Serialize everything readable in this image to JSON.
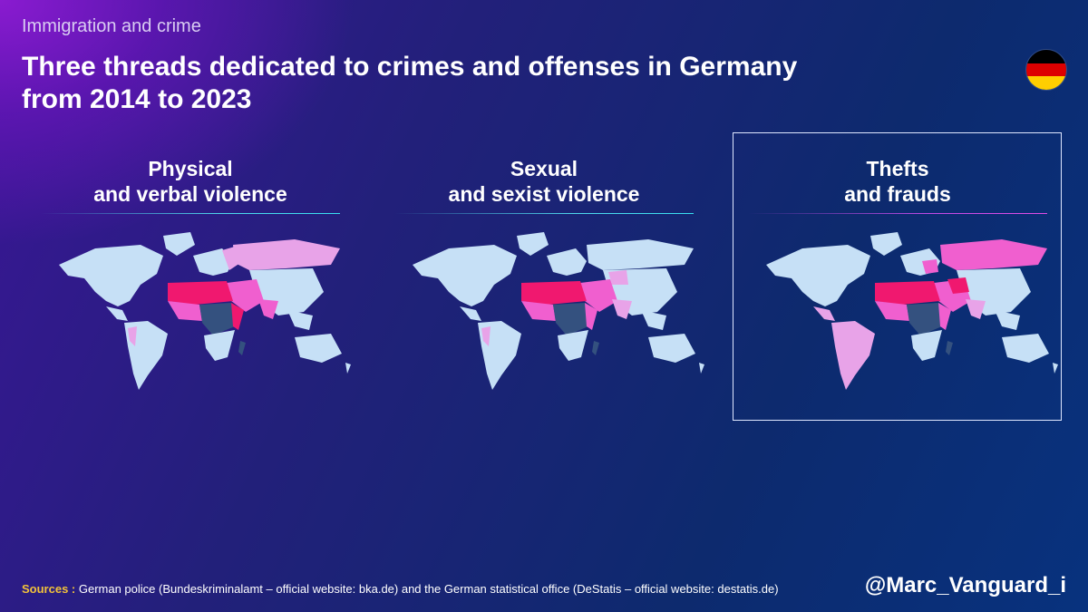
{
  "header": {
    "kicker": "Immigration and crime",
    "title_line1": "Three threads dedicated to crimes and offenses in Germany",
    "title_line2": "from 2014 to 2023"
  },
  "flag": {
    "name": "germany-flag-icon",
    "colors": [
      "#000000",
      "#dd0000",
      "#ffce00"
    ]
  },
  "panels": [
    {
      "line1": "Physical",
      "line2": "and verbal violence",
      "selected": false
    },
    {
      "line1": "Sexual",
      "line2": "and sexist violence",
      "selected": false
    },
    {
      "line1": "Thefts",
      "line2": "and frauds",
      "selected": true
    }
  ],
  "map_colors": {
    "base": "#c6e0f6",
    "dark": "#34517f",
    "light_pink": "#e8a3e8",
    "pink": "#f05fcf",
    "hot": "#f0186f"
  },
  "footer": {
    "sources_label": "Sources :",
    "sources_text": " German police (Bundeskriminalamt – official website: bka.de) and the German statistical office (DeStatis – official website: destatis.de)",
    "handle": "@Marc_Vanguard_i"
  }
}
